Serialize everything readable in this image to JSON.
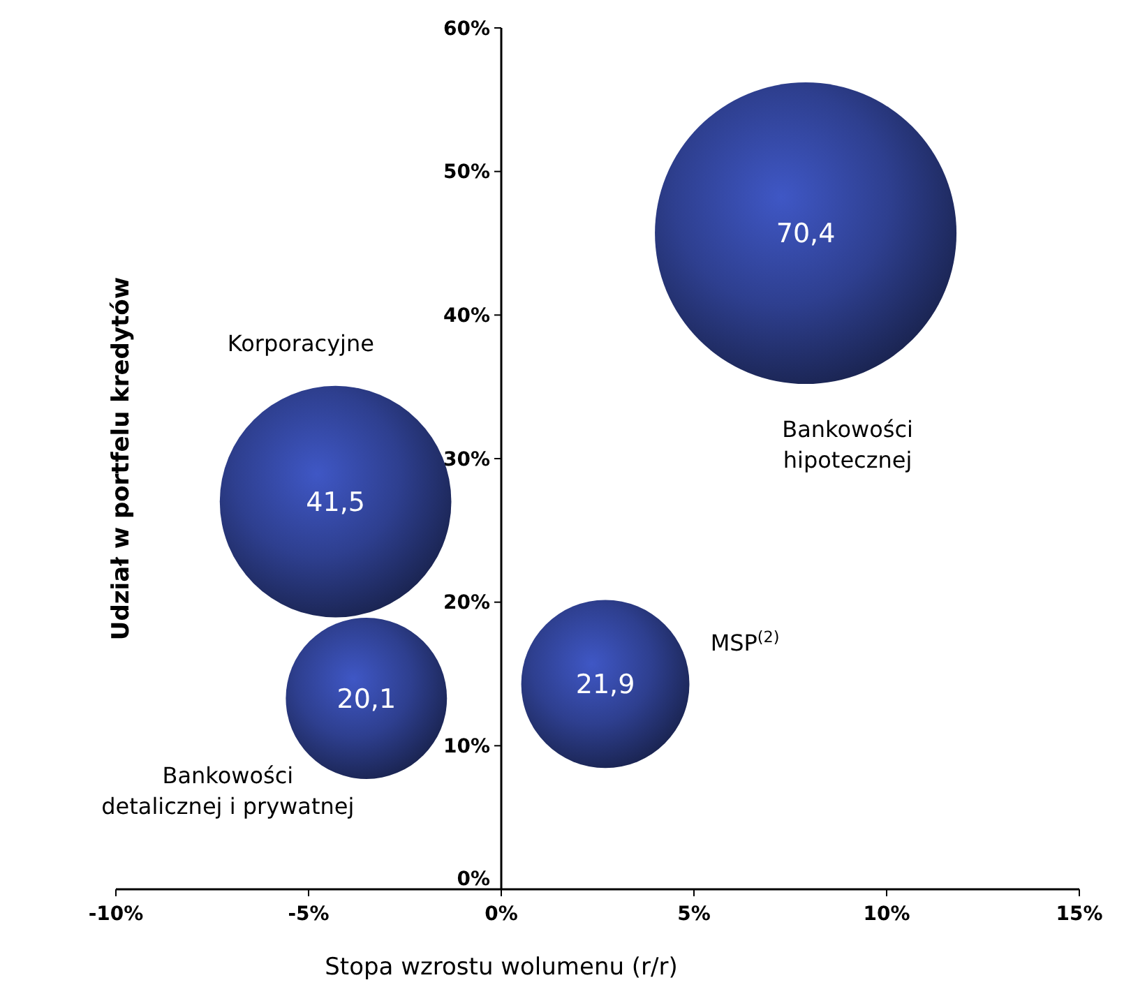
{
  "chart_data": {
    "type": "bubble",
    "xlabel": "Stopa wzrostu wolumenu (r/r)",
    "ylabel": "Udział w portfelu kredytów",
    "xlim": [
      -10,
      15
    ],
    "xticks": [
      {
        "value": -10,
        "label": "-10%"
      },
      {
        "value": -5,
        "label": "-5%"
      },
      {
        "value": 0,
        "label": "0%"
      },
      {
        "value": 5,
        "label": "5%"
      },
      {
        "value": 10,
        "label": "10%"
      },
      {
        "value": 15,
        "label": "15%"
      }
    ],
    "ylim": [
      0,
      60
    ],
    "yticks": [
      {
        "value": 0,
        "label": "0%"
      },
      {
        "value": 10,
        "label": "10%"
      },
      {
        "value": 20,
        "label": "20%"
      },
      {
        "value": 30,
        "label": "30%"
      },
      {
        "value": 40,
        "label": "40%"
      },
      {
        "value": 50,
        "label": "50%"
      },
      {
        "value": 60,
        "label": "60%"
      }
    ],
    "grid": false,
    "marker": "circle",
    "series": [
      {
        "name": "Bankowości hipotecznej",
        "color": "#2e3f8f",
        "x": [
          7.9
        ],
        "values": [
          45.7
        ],
        "sizes": [
          70.4
        ],
        "value_labels": [
          "70,4"
        ]
      },
      {
        "name": "Korporacyjne",
        "color": "#2e3f8f",
        "x": [
          -4.3
        ],
        "values": [
          27
        ],
        "sizes": [
          41.5
        ],
        "value_labels": [
          "41,5"
        ]
      },
      {
        "name": "Bankowości detalicznej i prywatnej",
        "color": "#2e3f8f",
        "x": [
          -3.5
        ],
        "values": [
          13.3
        ],
        "sizes": [
          20.1
        ],
        "value_labels": [
          "20,1"
        ]
      },
      {
        "name": "MSP$^{(2)}$",
        "color": "#2e3f8f",
        "x": [
          2.7
        ],
        "values": [
          14.3
        ],
        "sizes": [
          21.9
        ],
        "value_labels": [
          "21,9"
        ]
      }
    ]
  }
}
